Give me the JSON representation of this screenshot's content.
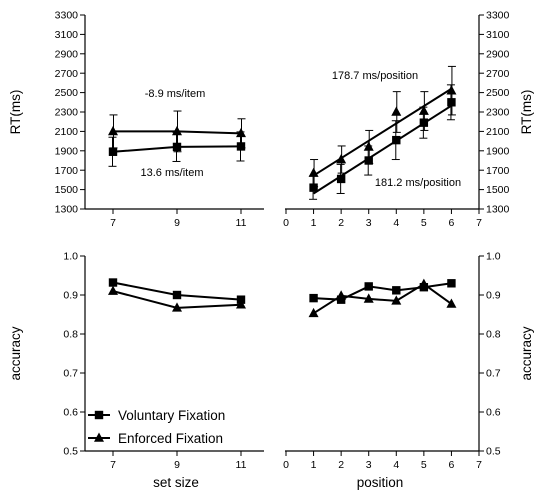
{
  "chart_data": [
    {
      "id": "rt_set_size",
      "type": "line",
      "xlabel": "",
      "ylabel": "RT(ms)",
      "x": [
        7,
        9,
        11
      ],
      "xticks": [
        7,
        9,
        11
      ],
      "ylim": [
        1300,
        3300
      ],
      "yticks": [
        1300,
        1500,
        1700,
        1900,
        2100,
        2300,
        2500,
        2700,
        2900,
        3100,
        3300
      ],
      "series": [
        {
          "name": "Voluntary Fixation",
          "marker": "square",
          "values": [
            1890,
            1940,
            1945
          ],
          "errors": [
            150,
            150,
            150
          ]
        },
        {
          "name": "Enforced Fixation",
          "marker": "triangle",
          "values": [
            2100,
            2100,
            2080
          ],
          "errors": [
            170,
            210,
            150
          ]
        }
      ],
      "annotations": [
        "-8.9 ms/item",
        "13.6 ms/item"
      ]
    },
    {
      "id": "rt_position",
      "type": "line",
      "xlabel": "",
      "ylabel": "RT(ms)",
      "x": [
        1,
        2,
        3,
        4,
        5,
        6
      ],
      "xticks": [
        0,
        1,
        2,
        3,
        4,
        5,
        6,
        7
      ],
      "xlim": [
        0,
        7
      ],
      "ylim": [
        1300,
        3300
      ],
      "yticks": [
        1300,
        1500,
        1700,
        1900,
        2100,
        2300,
        2500,
        2700,
        2900,
        3100,
        3300
      ],
      "series": [
        {
          "name": "Voluntary Fixation",
          "marker": "square",
          "values": [
            1520,
            1610,
            1800,
            2010,
            2190,
            2400
          ],
          "errors": [
            120,
            150,
            150,
            200,
            160,
            180
          ]
        },
        {
          "name": "Enforced Fixation",
          "marker": "triangle",
          "values": [
            1670,
            1810,
            1940,
            2300,
            2310,
            2520
          ],
          "errors": [
            140,
            140,
            170,
            210,
            200,
            250
          ]
        }
      ],
      "fit_lines": [
        {
          "series": "Enforced Fixation",
          "x": [
            1,
            6
          ],
          "y": [
            1645,
            2540
          ]
        },
        {
          "series": "Voluntary Fixation",
          "x": [
            1,
            6
          ],
          "y": [
            1460,
            2365
          ]
        }
      ],
      "annotations": [
        "178.7 ms/position",
        "181.2 ms/position"
      ]
    },
    {
      "id": "acc_set_size",
      "type": "line",
      "xlabel": "set size",
      "ylabel": "accuracy",
      "x": [
        7,
        9,
        11
      ],
      "xticks": [
        7,
        9,
        11
      ],
      "ylim": [
        0.5,
        1.0
      ],
      "yticks": [
        "0.5",
        "0.6",
        "0.7",
        "0.8",
        "0.9",
        "1.0"
      ],
      "series": [
        {
          "name": "Voluntary Fixation",
          "marker": "square",
          "values": [
            0.932,
            0.9,
            0.888
          ]
        },
        {
          "name": "Enforced Fixation",
          "marker": "triangle",
          "values": [
            0.91,
            0.867,
            0.875
          ]
        }
      ]
    },
    {
      "id": "acc_position",
      "type": "line",
      "xlabel": "position",
      "ylabel": "accuracy",
      "x": [
        1,
        2,
        3,
        4,
        5,
        6
      ],
      "xticks": [
        0,
        1,
        2,
        3,
        4,
        5,
        6,
        7
      ],
      "xlim": [
        0,
        7
      ],
      "ylim": [
        0.5,
        1.0
      ],
      "yticks": [
        "0.5",
        "0.6",
        "0.7",
        "0.8",
        "0.9",
        "1.0"
      ],
      "series": [
        {
          "name": "Voluntary Fixation",
          "marker": "square",
          "values": [
            0.892,
            0.888,
            0.922,
            0.912,
            0.92,
            0.93
          ]
        },
        {
          "name": "Enforced Fixation",
          "marker": "triangle",
          "values": [
            0.853,
            0.898,
            0.89,
            0.885,
            0.928,
            0.877
          ]
        }
      ]
    }
  ],
  "legend": {
    "placement": "bottom-left",
    "items": [
      {
        "label": "Voluntary Fixation",
        "marker": "square"
      },
      {
        "label": "Enforced Fixation",
        "marker": "triangle"
      }
    ]
  }
}
